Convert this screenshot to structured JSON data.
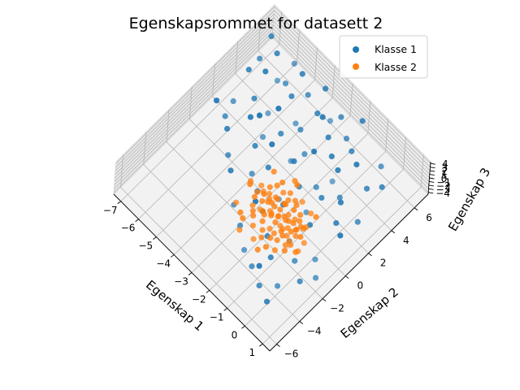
{
  "chart_data": {
    "type": "scatter",
    "title": "Egenskapsrommet for datasett 2",
    "xlabel": "Egenskap 1",
    "ylabel": "Egenskap 2",
    "zlabel": "Egenskap 3",
    "x_ticks": [
      "−7",
      "−6",
      "−5",
      "−4",
      "−3",
      "−2",
      "−1",
      "0",
      "1"
    ],
    "y_ticks": [
      "−6",
      "−4",
      "−2",
      "0",
      "2",
      "4",
      "6"
    ],
    "z_ticks": [
      "−4",
      "−3",
      "−2",
      "−1",
      "0",
      "1",
      "2",
      "3",
      "4"
    ],
    "xlim": [
      -7.4,
      1.4
    ],
    "ylim": [
      -6.6,
      7.2
    ],
    "zlim": [
      -4.5,
      4.5
    ],
    "legend_placement": "top-right",
    "grid": true,
    "series": [
      {
        "name": "Klasse 1",
        "color": "#1f77b4",
        "points": [
          [
            -7.0,
            6.4,
            0.3
          ],
          [
            -6.8,
            5.1,
            -0.8
          ],
          [
            -6.6,
            3.8,
            1.2
          ],
          [
            -6.4,
            2.2,
            -1.5
          ],
          [
            -6.3,
            5.8,
            0.9
          ],
          [
            -6.1,
            1.0,
            -0.4
          ],
          [
            -6.0,
            4.3,
            2.1
          ],
          [
            -5.8,
            6.6,
            -2.0
          ],
          [
            -5.7,
            2.9,
            0.5
          ],
          [
            -5.5,
            0.2,
            1.6
          ],
          [
            -5.4,
            5.2,
            -1.1
          ],
          [
            -5.2,
            3.4,
            -2.7
          ],
          [
            -5.1,
            1.6,
            2.4
          ],
          [
            -5.0,
            6.0,
            1.0
          ],
          [
            -4.9,
            -0.6,
            -0.2
          ],
          [
            -4.7,
            4.6,
            0.7
          ],
          [
            -4.6,
            2.0,
            -1.9
          ],
          [
            -4.5,
            3.1,
            3.0
          ],
          [
            -4.4,
            5.6,
            -0.6
          ],
          [
            -4.3,
            0.8,
            0.9
          ],
          [
            -4.2,
            -1.5,
            1.8
          ],
          [
            -4.1,
            4.1,
            -2.3
          ],
          [
            -4.0,
            2.6,
            0.1
          ],
          [
            -3.9,
            6.3,
            1.4
          ],
          [
            -3.8,
            -0.2,
            -1.2
          ],
          [
            -3.7,
            1.3,
            2.7
          ],
          [
            -3.6,
            3.7,
            -0.3
          ],
          [
            -3.5,
            5.0,
            0.6
          ],
          [
            -3.4,
            -2.4,
            -0.9
          ],
          [
            -3.3,
            0.4,
            1.1
          ],
          [
            -3.2,
            2.3,
            -2.6
          ],
          [
            -3.1,
            4.8,
            2.2
          ],
          [
            -3.0,
            -1.0,
            0.4
          ],
          [
            -2.9,
            3.0,
            -1.4
          ],
          [
            -2.8,
            6.0,
            -0.1
          ],
          [
            -2.7,
            1.7,
            1.7
          ],
          [
            -2.6,
            -3.1,
            -0.5
          ],
          [
            -2.5,
            4.4,
            0.8
          ],
          [
            -2.4,
            0.0,
            -2.0
          ],
          [
            -2.3,
            2.8,
            2.9
          ],
          [
            -2.2,
            -1.8,
            1.3
          ],
          [
            -2.1,
            5.4,
            -0.7
          ],
          [
            -2.0,
            1.1,
            0.0
          ],
          [
            -1.9,
            -3.8,
            -1.6
          ],
          [
            -1.8,
            3.6,
            1.5
          ],
          [
            -1.7,
            -0.8,
            2.5
          ],
          [
            -1.6,
            2.0,
            -1.0
          ],
          [
            -1.5,
            4.9,
            0.3
          ],
          [
            -1.4,
            -2.6,
            0.9
          ],
          [
            -1.3,
            0.7,
            -2.4
          ],
          [
            -1.2,
            3.2,
            1.9
          ],
          [
            -1.1,
            -4.4,
            -0.3
          ],
          [
            -1.0,
            1.5,
            0.6
          ],
          [
            -0.9,
            -1.4,
            -1.8
          ],
          [
            -0.8,
            4.2,
            2.3
          ],
          [
            -0.7,
            -3.4,
            1.0
          ],
          [
            -0.6,
            2.5,
            -0.5
          ],
          [
            -0.5,
            -0.3,
            1.2
          ],
          [
            -0.4,
            5.8,
            -1.3
          ],
          [
            -0.3,
            -5.0,
            0.2
          ],
          [
            -0.2,
            1.9,
            2.0
          ],
          [
            -0.1,
            -2.2,
            -0.8
          ],
          [
            0.0,
            3.9,
            0.5
          ],
          [
            0.1,
            -4.0,
            -1.1
          ],
          [
            0.2,
            0.9,
            1.4
          ],
          [
            0.3,
            -1.0,
            -2.2
          ],
          [
            0.4,
            4.6,
            0.7
          ],
          [
            0.5,
            -5.6,
            1.6
          ],
          [
            0.6,
            2.2,
            -0.4
          ],
          [
            0.7,
            -3.0,
            0.0
          ],
          [
            0.8,
            0.3,
            2.8
          ],
          [
            0.9,
            -1.9,
            -1.5
          ],
          [
            -5.9,
            5.3,
            -3.1
          ],
          [
            -4.8,
            1.9,
            3.4
          ],
          [
            -3.3,
            5.9,
            -3.3
          ],
          [
            -2.5,
            -2.0,
            3.2
          ],
          [
            -1.5,
            3.3,
            -3.0
          ],
          [
            -0.6,
            -4.6,
            2.9
          ],
          [
            -6.5,
            0.8,
            2.6
          ],
          [
            -2.0,
            6.6,
            0.9
          ]
        ]
      },
      {
        "name": "Klasse 2",
        "color": "#ff7f0e",
        "points": [
          [
            -3.0,
            -1.0,
            0.2
          ],
          [
            -2.9,
            -0.6,
            -0.4
          ],
          [
            -2.9,
            -1.4,
            0.6
          ],
          [
            -2.8,
            -0.2,
            0.0
          ],
          [
            -2.8,
            -1.7,
            -0.3
          ],
          [
            -2.7,
            -0.9,
            0.8
          ],
          [
            -2.7,
            -0.4,
            -0.7
          ],
          [
            -2.6,
            -1.2,
            0.3
          ],
          [
            -2.6,
            0.1,
            0.5
          ],
          [
            -2.6,
            -2.0,
            0.1
          ],
          [
            -2.5,
            -0.7,
            -0.2
          ],
          [
            -2.5,
            -1.5,
            -0.6
          ],
          [
            -2.5,
            0.4,
            0.9
          ],
          [
            -2.4,
            -1.0,
            0.4
          ],
          [
            -2.4,
            -0.3,
            -0.5
          ],
          [
            -2.4,
            -2.3,
            0.7
          ],
          [
            -2.3,
            -0.8,
            0.0
          ],
          [
            -2.3,
            -1.6,
            0.2
          ],
          [
            -2.3,
            0.2,
            -0.3
          ],
          [
            -2.2,
            -1.1,
            -0.8
          ],
          [
            -2.2,
            -0.5,
            0.6
          ],
          [
            -2.2,
            -2.6,
            -0.1
          ],
          [
            -2.1,
            -0.9,
            0.3
          ],
          [
            -2.1,
            -1.8,
            0.9
          ],
          [
            -2.1,
            0.5,
            -0.4
          ],
          [
            -2.0,
            -1.3,
            0.1
          ],
          [
            -2.0,
            -0.2,
            -0.6
          ],
          [
            -2.0,
            -2.1,
            0.5
          ],
          [
            -1.9,
            -0.7,
            -0.2
          ],
          [
            -1.9,
            -1.5,
            0.7
          ],
          [
            -1.9,
            0.0,
            0.2
          ],
          [
            -1.8,
            -1.0,
            -0.5
          ],
          [
            -1.8,
            -2.4,
            0.0
          ],
          [
            -1.8,
            -0.4,
            0.8
          ],
          [
            -1.7,
            -1.2,
            0.4
          ],
          [
            -1.7,
            -1.9,
            -0.7
          ],
          [
            -1.7,
            0.3,
            0.1
          ],
          [
            -1.6,
            -0.8,
            -0.3
          ],
          [
            -1.6,
            -1.6,
            0.6
          ],
          [
            -1.6,
            -2.8,
            0.2
          ],
          [
            -1.5,
            -0.6,
            0.0
          ],
          [
            -1.5,
            -1.3,
            -0.8
          ],
          [
            -1.5,
            0.1,
            0.5
          ],
          [
            -1.4,
            -1.0,
            0.3
          ],
          [
            -1.4,
            -2.0,
            -0.2
          ],
          [
            -1.4,
            -0.3,
            0.9
          ],
          [
            -1.3,
            -1.4,
            -0.4
          ],
          [
            -1.3,
            -0.9,
            0.2
          ],
          [
            -1.3,
            -2.5,
            0.6
          ],
          [
            -1.2,
            -0.5,
            -0.1
          ],
          [
            -1.2,
            -1.7,
            0.4
          ],
          [
            -1.2,
            -1.1,
            -0.6
          ],
          [
            -1.1,
            -0.2,
            0.7
          ],
          [
            -1.1,
            -2.2,
            0.0
          ],
          [
            -1.1,
            -0.8,
            0.3
          ],
          [
            -1.0,
            -1.5,
            -0.5
          ],
          [
            -1.0,
            -0.4,
            0.1
          ],
          [
            -1.0,
            -1.9,
            0.8
          ],
          [
            -0.9,
            -0.9,
            -0.3
          ],
          [
            -0.9,
            -1.3,
            0.5
          ],
          [
            -0.9,
            -2.7,
            -0.2
          ],
          [
            -0.8,
            -0.6,
            0.2
          ],
          [
            -0.8,
            -1.6,
            -0.7
          ],
          [
            -0.8,
            -1.0,
            0.6
          ],
          [
            -0.7,
            -0.3,
            -0.4
          ],
          [
            -0.7,
            -2.1,
            0.3
          ],
          [
            -0.7,
            -1.2,
            0.0
          ],
          [
            -0.6,
            -0.7,
            0.9
          ],
          [
            -0.6,
            -1.8,
            -0.1
          ],
          [
            -0.5,
            -1.1,
            0.4
          ],
          [
            -3.3,
            -1.2,
            1.5
          ],
          [
            -3.2,
            -0.3,
            -1.2
          ],
          [
            -1.1,
            -3.2,
            1.3
          ],
          [
            -0.4,
            -0.9,
            -1.4
          ],
          [
            -2.0,
            0.9,
            1.1
          ],
          [
            -0.5,
            -2.5,
            1.0
          ],
          [
            -3.4,
            -2.2,
            -0.9
          ],
          [
            -1.6,
            0.8,
            -1.3
          ],
          [
            -2.8,
            -2.8,
            1.2
          ],
          [
            -0.3,
            -1.6,
            -1.0
          ],
          [
            -2.5,
            -3.3,
            -0.6
          ],
          [
            -1.3,
            -3.6,
            0.8
          ],
          [
            -3.1,
            0.6,
            0.3
          ],
          [
            -0.6,
            0.4,
            0.7
          ],
          [
            -1.9,
            -3.0,
            -1.1
          ],
          [
            -2.3,
            1.2,
            -0.2
          ],
          [
            -0.2,
            -2.0,
            0.5
          ],
          [
            -3.5,
            -0.8,
            0.1
          ],
          [
            -1.0,
            0.6,
            -0.9
          ],
          [
            -2.6,
            -2.9,
            0.9
          ]
        ]
      }
    ]
  }
}
